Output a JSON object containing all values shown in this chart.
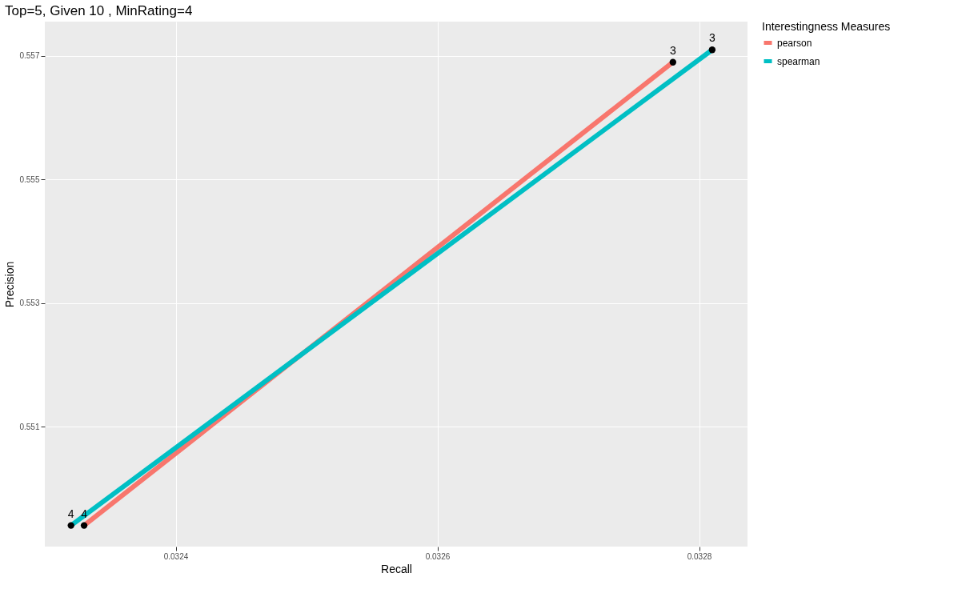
{
  "chart_data": {
    "type": "line",
    "title": "Top=5, Given 10 , MinRating=4",
    "xlabel": "Recall",
    "ylabel": "Precision",
    "legend_title": "Interestingness Measures",
    "xlim": [
      0.0323,
      0.032837
    ],
    "xticks": [
      0.0324,
      0.0326,
      0.0328
    ],
    "ylim": [
      0.549058,
      0.557557
    ],
    "yticks": [
      0.551,
      0.553,
      0.555,
      0.557
    ],
    "grid": true,
    "legend": "right",
    "marker": "circle",
    "line_style": "solid",
    "series": [
      {
        "name": "pearson",
        "color": "#f8766d",
        "x": [
          0.03233,
          0.03278
        ],
        "values": [
          0.5494,
          0.5569
        ]
      },
      {
        "name": "spearman",
        "color": "#00bfc4",
        "x": [
          0.03232,
          0.03281
        ],
        "values": [
          0.5494,
          0.5571
        ]
      }
    ],
    "annotations": [
      {
        "text": "4",
        "x": 0.03233,
        "y": 0.5494
      },
      {
        "text": "3",
        "x": 0.03278,
        "y": 0.5569
      },
      {
        "text": "4",
        "x": 0.03232,
        "y": 0.5494
      },
      {
        "text": "3",
        "x": 0.03281,
        "y": 0.5571
      }
    ]
  }
}
